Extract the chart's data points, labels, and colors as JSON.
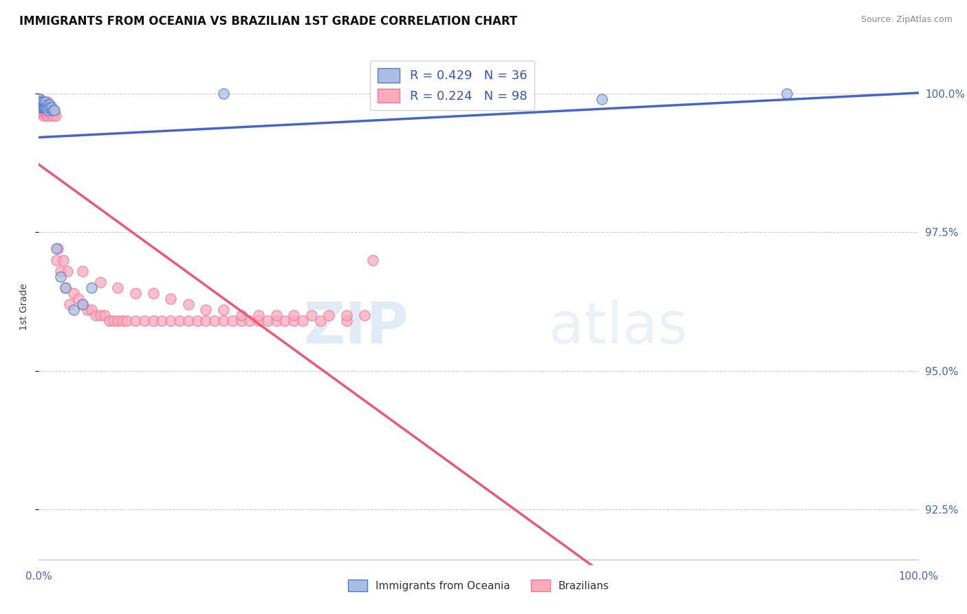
{
  "title": "IMMIGRANTS FROM OCEANIA VS BRAZILIAN 1ST GRADE CORRELATION CHART",
  "source": "Source: ZipAtlas.com",
  "ylabel": "1st Grade",
  "ytick_labels": [
    "100.0%",
    "97.5%",
    "95.0%",
    "92.5%"
  ],
  "ytick_values": [
    1.0,
    0.975,
    0.95,
    0.925
  ],
  "xlim": [
    0.0,
    1.0
  ],
  "ylim": [
    0.915,
    1.008
  ],
  "legend_blue_label": "R = 0.429   N = 36",
  "legend_pink_label": "R = 0.224   N = 98",
  "legend_bottom_blue": "Immigrants from Oceania",
  "legend_bottom_pink": "Brazilians",
  "blue_fill": "#AABFE0",
  "pink_fill": "#FFAABB",
  "blue_edge": "#5577CC",
  "pink_edge": "#EE7799",
  "blue_line": "#4466CC",
  "pink_line": "#EE5577",
  "watermark_zip": "ZIP",
  "watermark_atlas": "atlas",
  "blue_scatter_x": [
    0.0,
    0.001,
    0.001,
    0.002,
    0.002,
    0.003,
    0.003,
    0.004,
    0.004,
    0.005,
    0.005,
    0.006,
    0.006,
    0.007,
    0.007,
    0.008,
    0.008,
    0.009,
    0.01,
    0.01,
    0.011,
    0.012,
    0.013,
    0.015,
    0.016,
    0.018,
    0.02,
    0.025,
    0.03,
    0.04,
    0.05,
    0.06,
    0.21,
    0.42,
    0.64,
    0.85
  ],
  "blue_scatter_y": [
    0.999,
    0.999,
    0.9985,
    0.9985,
    0.998,
    0.998,
    0.9975,
    0.9985,
    0.9975,
    0.998,
    0.9975,
    0.9985,
    0.9975,
    0.998,
    0.9975,
    0.9985,
    0.9975,
    0.9975,
    0.998,
    0.997,
    0.9975,
    0.998,
    0.9975,
    0.9975,
    0.997,
    0.997,
    0.972,
    0.967,
    0.965,
    0.961,
    0.962,
    0.965,
    1.0,
    1.0,
    0.999,
    1.0
  ],
  "pink_scatter_x": [
    0.0,
    0.0,
    0.001,
    0.001,
    0.001,
    0.002,
    0.002,
    0.002,
    0.003,
    0.003,
    0.003,
    0.004,
    0.004,
    0.004,
    0.005,
    0.005,
    0.005,
    0.006,
    0.006,
    0.007,
    0.007,
    0.008,
    0.008,
    0.009,
    0.009,
    0.01,
    0.01,
    0.011,
    0.011,
    0.012,
    0.012,
    0.013,
    0.014,
    0.015,
    0.016,
    0.017,
    0.018,
    0.019,
    0.02,
    0.022,
    0.025,
    0.028,
    0.03,
    0.033,
    0.035,
    0.04,
    0.045,
    0.05,
    0.055,
    0.06,
    0.065,
    0.07,
    0.075,
    0.08,
    0.085,
    0.09,
    0.095,
    0.1,
    0.11,
    0.12,
    0.13,
    0.14,
    0.15,
    0.16,
    0.17,
    0.18,
    0.19,
    0.2,
    0.21,
    0.22,
    0.23,
    0.24,
    0.25,
    0.26,
    0.27,
    0.28,
    0.29,
    0.3,
    0.32,
    0.35,
    0.38,
    0.05,
    0.07,
    0.09,
    0.11,
    0.13,
    0.15,
    0.17,
    0.19,
    0.21,
    0.23,
    0.25,
    0.27,
    0.29,
    0.31,
    0.33,
    0.35,
    0.37
  ],
  "pink_scatter_y": [
    0.999,
    0.9985,
    0.999,
    0.9985,
    0.9975,
    0.9985,
    0.9975,
    0.997,
    0.9985,
    0.9975,
    0.9965,
    0.9985,
    0.9975,
    0.9965,
    0.9985,
    0.9975,
    0.996,
    0.9985,
    0.9975,
    0.9985,
    0.9965,
    0.998,
    0.9965,
    0.998,
    0.996,
    0.9985,
    0.9965,
    0.998,
    0.996,
    0.998,
    0.9965,
    0.997,
    0.997,
    0.997,
    0.996,
    0.997,
    0.9965,
    0.996,
    0.97,
    0.972,
    0.968,
    0.97,
    0.965,
    0.968,
    0.962,
    0.964,
    0.963,
    0.962,
    0.961,
    0.961,
    0.96,
    0.96,
    0.96,
    0.959,
    0.959,
    0.959,
    0.959,
    0.959,
    0.959,
    0.959,
    0.959,
    0.959,
    0.959,
    0.959,
    0.959,
    0.959,
    0.959,
    0.959,
    0.959,
    0.959,
    0.959,
    0.959,
    0.959,
    0.959,
    0.959,
    0.959,
    0.959,
    0.959,
    0.959,
    0.959,
    0.97,
    0.968,
    0.966,
    0.965,
    0.964,
    0.964,
    0.963,
    0.962,
    0.961,
    0.961,
    0.96,
    0.96,
    0.96,
    0.96,
    0.96,
    0.96,
    0.96,
    0.96
  ]
}
